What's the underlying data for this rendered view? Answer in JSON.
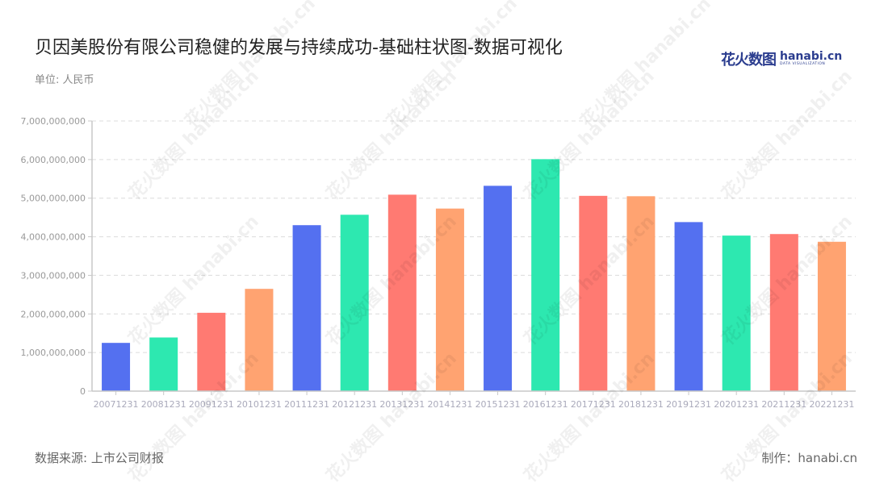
{
  "header": {
    "title": "贝因美股份有限公司稳健的发展与持续成功-基础柱状图-数据可视化",
    "unit": "单位: 人民币",
    "logo_cn": "花火数图",
    "logo_en": "hanabi.cn",
    "logo_sub": "DATA VISUALIZATION"
  },
  "footer": {
    "source": "数据来源: 上市公司财报",
    "credit": "制作：hanabi.cn"
  },
  "watermark_text": "花火数图 hanabi.cn",
  "colors": [
    "#5470f0",
    "#2de8b0",
    "#ff7a72",
    "#ffa371"
  ],
  "chart_data": {
    "type": "bar",
    "title": "贝因美股份有限公司稳健的发展与持续成功-基础柱状图-数据可视化",
    "xlabel": "",
    "ylabel": "单位: 人民币",
    "ylim": [
      0,
      7000000000
    ],
    "yticks": [
      0,
      1000000000,
      2000000000,
      3000000000,
      4000000000,
      5000000000,
      6000000000,
      7000000000
    ],
    "ytick_labels": [
      "0",
      "1,000,000,000",
      "2,000,000,000",
      "3,000,000,000",
      "4,000,000,000",
      "5,000,000,000",
      "6,000,000,000",
      "7,000,000,000"
    ],
    "grid": true,
    "legend": null,
    "categories": [
      "20071231",
      "20081231",
      "20091231",
      "20101231",
      "20111231",
      "20121231",
      "20131231",
      "20141231",
      "20151231",
      "20161231",
      "20171231",
      "20181231",
      "20191231",
      "20201231",
      "20211231",
      "20221231"
    ],
    "values": [
      1250000000,
      1390000000,
      2030000000,
      2650000000,
      4300000000,
      4570000000,
      5090000000,
      4730000000,
      5320000000,
      6010000000,
      5060000000,
      5050000000,
      4380000000,
      4030000000,
      4070000000,
      3870000000
    ]
  }
}
